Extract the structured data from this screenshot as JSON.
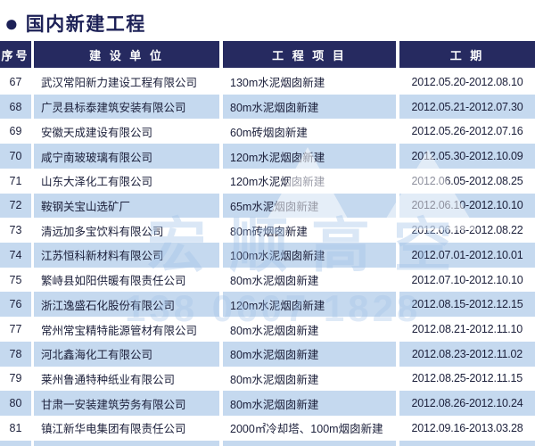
{
  "title": "国内新建工程",
  "bullet_icon": "●",
  "colors": {
    "header_bg": "#262a60",
    "title_text": "#1d2157",
    "alt_row_bg": "#c5d9ef",
    "body_text": "#1b1f3a",
    "header_text": "#ffffff"
  },
  "watermark": {
    "logo_text": "宏顺高空",
    "phone_text": "138 0607 1828"
  },
  "table": {
    "headers": [
      "序号",
      "建 设 单 位",
      "工 程 项 目",
      "工  期"
    ],
    "rows": [
      {
        "no": "67",
        "company": "武汉常阳新力建设工程有限公司",
        "project": "130m水泥烟囱新建",
        "period": "2012.05.20-2012.08.10"
      },
      {
        "no": "68",
        "company": "广灵县标泰建筑安装有限公司",
        "project": "80m水泥烟囱新建",
        "period": "2012.05.21-2012.07.30"
      },
      {
        "no": "69",
        "company": "安徽天成建设有限公司",
        "project": "60m砖烟囱新建",
        "period": "2012.05.26-2012.07.16"
      },
      {
        "no": "70",
        "company": "咸宁南玻玻璃有限公司",
        "project": "120m水泥烟囱新建",
        "period": "2012.05.30-2012.10.09"
      },
      {
        "no": "71",
        "company": "山东大泽化工有限公司",
        "project": "120m水泥烟囱新建",
        "period": "2012.06.05-2012.08.25"
      },
      {
        "no": "72",
        "company": "鞍钢关宝山选矿厂",
        "project": "65m水泥烟囱新建",
        "period": "2012.06.10-2012.10.10"
      },
      {
        "no": "73",
        "company": "清远加多宝饮料有限公司",
        "project": "80m砖烟囱新建",
        "period": "2012.06.18-2012.08.22"
      },
      {
        "no": "74",
        "company": "江苏恒科新材料有限公司",
        "project": "100m水泥烟囱新建",
        "period": "2012.07.01-2012.10.01"
      },
      {
        "no": "75",
        "company": "繁峙县如阳供暖有限责任公司",
        "project": "80m水泥烟囱新建",
        "period": "2012.07.10-2012.10.10"
      },
      {
        "no": "76",
        "company": "浙江逸盛石化股份有限公司",
        "project": "120m水泥烟囱新建",
        "period": "2012.08.15-2012.12.15"
      },
      {
        "no": "77",
        "company": "常州常宝精特能源管材有限公司",
        "project": "80m水泥烟囱新建",
        "period": "2012.08.21-2012.11.10"
      },
      {
        "no": "78",
        "company": "河北鑫海化工有限公司",
        "project": "80m水泥烟囱新建",
        "period": "2012.08.23-2012.11.02"
      },
      {
        "no": "79",
        "company": "莱州鲁通特种纸业有限公司",
        "project": "80m水泥烟囱新建",
        "period": "2012.08.25-2012.11.15"
      },
      {
        "no": "80",
        "company": "甘肃一安装建筑劳务有限公司",
        "project": "80m水泥烟囱新建",
        "period": "2012.08.26-2012.10.24"
      },
      {
        "no": "81",
        "company": "镇江新华电集团有限责任公司",
        "project": "2000㎡冷却塔、100m烟囱新建",
        "period": "2012.09.16-2013.03.28"
      }
    ]
  }
}
